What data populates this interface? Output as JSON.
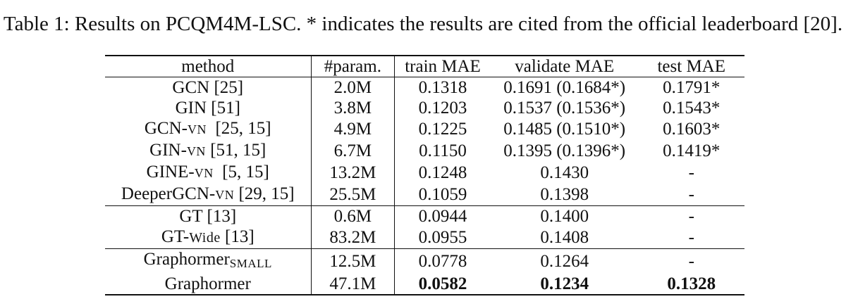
{
  "caption": "Table 1: Results on PCQM4M-LSC. * indicates the results are cited from the official leaderboard [20].",
  "headers": [
    "method",
    "#param.",
    "train MAE",
    "validate MAE",
    "test MAE"
  ],
  "rows": [
    {
      "method": "GCN",
      "suffix": "",
      "ref": " [25]",
      "params": "2.0M",
      "train": "0.1318",
      "validate": "0.1691 (0.1684*)",
      "test": "0.1791*"
    },
    {
      "method": "GIN",
      "suffix": "",
      "ref": " [51]",
      "params": "3.8M",
      "train": "0.1203",
      "validate": "0.1537 (0.1536*)",
      "test": "0.1543*"
    },
    {
      "method": "GCN-",
      "suffix": "VN",
      "ref": "  [25, 15]",
      "params": "4.9M",
      "train": "0.1225",
      "validate": "0.1485 (0.1510*)",
      "test": "0.1603*"
    },
    {
      "method": "GIN-",
      "suffix": "VN",
      "ref": " [51, 15]",
      "params": "6.7M",
      "train": "0.1150",
      "validate": "0.1395 (0.1396*)",
      "test": "0.1419*"
    },
    {
      "method": "GINE-",
      "suffix": "VN",
      "ref": "  [5, 15]",
      "params": "13.2M",
      "train": "0.1248",
      "validate": "0.1430",
      "test": "-"
    },
    {
      "method": "DeeperGCN-",
      "suffix": "VN",
      "ref": " [29, 15]",
      "params": "25.5M",
      "train": "0.1059",
      "validate": "0.1398",
      "test": "-"
    },
    {
      "method": "GT",
      "suffix": "",
      "ref": " [13]",
      "params": "0.6M",
      "train": "0.0944",
      "validate": "0.1400",
      "test": "-"
    },
    {
      "method": "GT-",
      "suffix": "Wide",
      "ref": " [13]",
      "params": "83.2M",
      "train": "0.0955",
      "validate": "0.1408",
      "test": "-"
    },
    {
      "method": "Graphormer",
      "suffix": "SMALL",
      "ref": "",
      "params": "12.5M",
      "train": "0.0778",
      "validate": "0.1264",
      "test": "-"
    },
    {
      "method": "Graphormer",
      "suffix": "",
      "ref": "",
      "params": "47.1M",
      "train": "0.0582",
      "validate": "0.1234",
      "test": "0.1328"
    }
  ]
}
